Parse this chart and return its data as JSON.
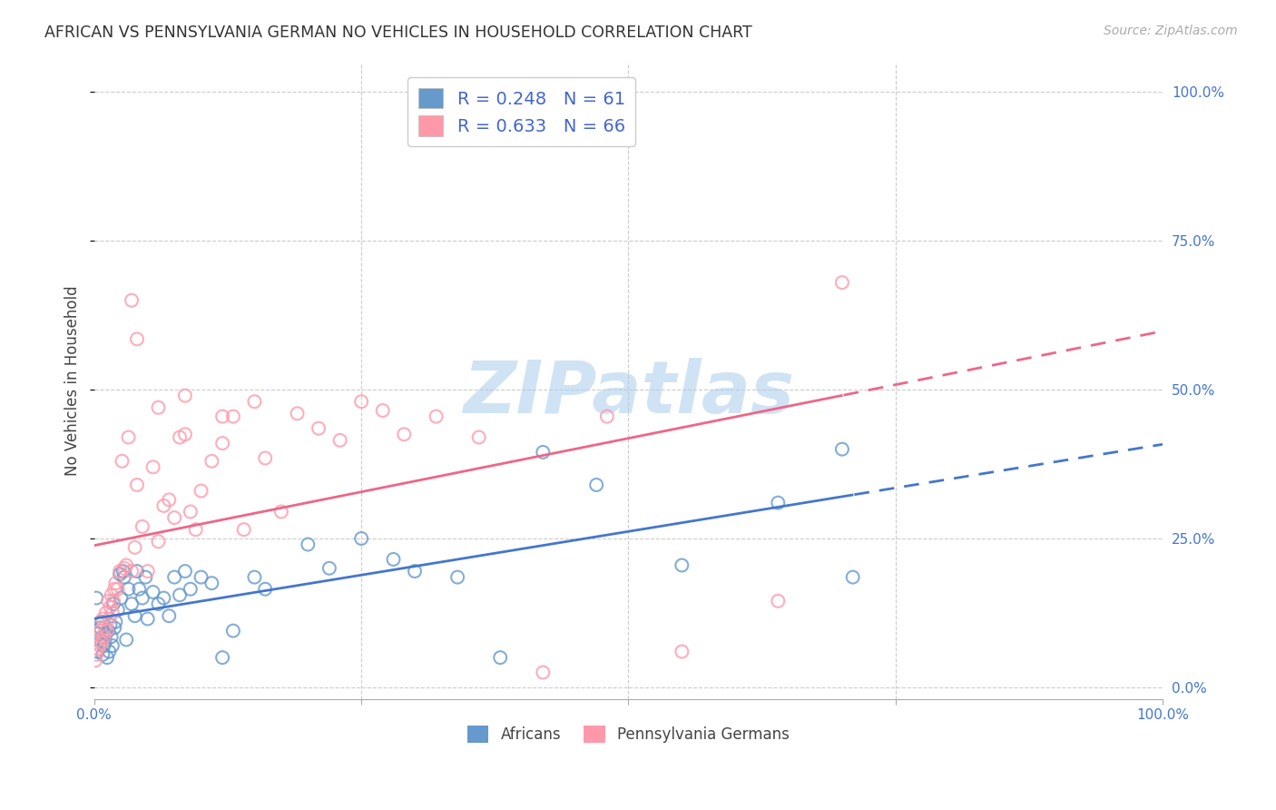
{
  "title": "AFRICAN VS PENNSYLVANIA GERMAN NO VEHICLES IN HOUSEHOLD CORRELATION CHART",
  "source": "Source: ZipAtlas.com",
  "ylabel": "No Vehicles in Household",
  "ytick_labels": [
    "0.0%",
    "25.0%",
    "50.0%",
    "75.0%",
    "100.0%"
  ],
  "ytick_vals": [
    0.0,
    0.25,
    0.5,
    0.75,
    1.0
  ],
  "xtick_labels": [
    "0.0%",
    "",
    "",
    "",
    "100.0%"
  ],
  "xtick_vals": [
    0.0,
    0.25,
    0.5,
    0.75,
    1.0
  ],
  "xlim": [
    0.0,
    1.0
  ],
  "ylim": [
    -0.02,
    1.05
  ],
  "legend_label1": "Africans",
  "legend_label2": "Pennsylvania Germans",
  "r1": "0.248",
  "n1": "61",
  "r2": "0.633",
  "n2": "66",
  "color_blue": "#6699CC",
  "color_pink": "#FF99AA",
  "line_blue": "#4477CC",
  "line_pink": "#EE6688",
  "watermark": "ZIPatlas",
  "watermark_color": "#AACCEE",
  "bg_color": "#FFFFFF",
  "african_x": [
    0.002,
    0.003,
    0.004,
    0.005,
    0.006,
    0.007,
    0.008,
    0.008,
    0.009,
    0.01,
    0.011,
    0.012,
    0.013,
    0.014,
    0.015,
    0.016,
    0.017,
    0.018,
    0.019,
    0.02,
    0.022,
    0.024,
    0.025,
    0.027,
    0.028,
    0.03,
    0.032,
    0.035,
    0.038,
    0.04,
    0.042,
    0.045,
    0.048,
    0.05,
    0.055,
    0.06,
    0.065,
    0.07,
    0.075,
    0.08,
    0.085,
    0.09,
    0.1,
    0.11,
    0.12,
    0.13,
    0.15,
    0.16,
    0.2,
    0.22,
    0.25,
    0.28,
    0.3,
    0.34,
    0.38,
    0.42,
    0.47,
    0.55,
    0.64,
    0.7,
    0.71
  ],
  "african_y": [
    0.15,
    0.06,
    0.09,
    0.08,
    0.1,
    0.11,
    0.055,
    0.085,
    0.07,
    0.075,
    0.09,
    0.05,
    0.095,
    0.06,
    0.105,
    0.085,
    0.07,
    0.14,
    0.1,
    0.11,
    0.13,
    0.19,
    0.15,
    0.195,
    0.185,
    0.08,
    0.165,
    0.14,
    0.12,
    0.195,
    0.165,
    0.15,
    0.185,
    0.115,
    0.16,
    0.14,
    0.15,
    0.12,
    0.185,
    0.155,
    0.195,
    0.165,
    0.185,
    0.175,
    0.05,
    0.095,
    0.185,
    0.165,
    0.24,
    0.2,
    0.25,
    0.215,
    0.195,
    0.185,
    0.05,
    0.395,
    0.34,
    0.205,
    0.31,
    0.4,
    0.185
  ],
  "pennger_x": [
    0.001,
    0.002,
    0.003,
    0.004,
    0.005,
    0.006,
    0.007,
    0.008,
    0.009,
    0.01,
    0.011,
    0.012,
    0.013,
    0.014,
    0.015,
    0.016,
    0.017,
    0.018,
    0.019,
    0.02,
    0.022,
    0.024,
    0.026,
    0.028,
    0.03,
    0.032,
    0.035,
    0.038,
    0.04,
    0.045,
    0.05,
    0.055,
    0.06,
    0.065,
    0.07,
    0.075,
    0.08,
    0.085,
    0.09,
    0.095,
    0.1,
    0.11,
    0.12,
    0.13,
    0.14,
    0.15,
    0.16,
    0.175,
    0.19,
    0.21,
    0.23,
    0.25,
    0.27,
    0.29,
    0.32,
    0.36,
    0.42,
    0.48,
    0.55,
    0.64,
    0.7,
    0.035,
    0.04,
    0.06,
    0.085,
    0.12
  ],
  "pennger_y": [
    0.045,
    0.055,
    0.065,
    0.08,
    0.07,
    0.095,
    0.075,
    0.115,
    0.085,
    0.1,
    0.125,
    0.095,
    0.145,
    0.115,
    0.135,
    0.155,
    0.125,
    0.145,
    0.165,
    0.175,
    0.165,
    0.195,
    0.38,
    0.2,
    0.205,
    0.42,
    0.195,
    0.235,
    0.34,
    0.27,
    0.195,
    0.37,
    0.245,
    0.305,
    0.315,
    0.285,
    0.42,
    0.425,
    0.295,
    0.265,
    0.33,
    0.38,
    0.455,
    0.455,
    0.265,
    0.48,
    0.385,
    0.295,
    0.46,
    0.435,
    0.415,
    0.48,
    0.465,
    0.425,
    0.455,
    0.42,
    0.025,
    0.455,
    0.06,
    0.145,
    0.68,
    0.65,
    0.585,
    0.47,
    0.49,
    0.41
  ]
}
